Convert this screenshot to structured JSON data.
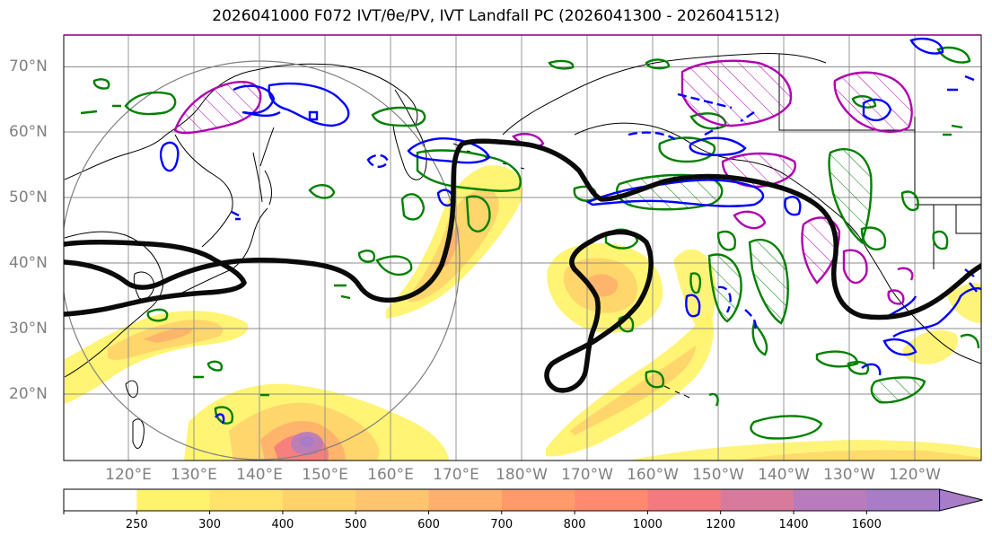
{
  "title": "2026041000 F072 IVT/θe/PV, IVT Landfall PC (2026041300 - 2026041512)",
  "map": {
    "lat_labels": [
      "70°N",
      "60°N",
      "50°N",
      "40°N",
      "30°N",
      "20°N"
    ],
    "lon_labels": [
      "120°E",
      "130°E",
      "140°E",
      "150°E",
      "160°E",
      "170°E",
      "180°W",
      "170°W",
      "160°W",
      "150°W",
      "140°W",
      "130°W",
      "120°W"
    ],
    "colors": {
      "ivt_contour": "#0a0a0a",
      "theta_e": "#0000ff",
      "pv": "#b000b0",
      "landfall": "#008000",
      "coastline": "#000000",
      "grid": "#8c8c8c",
      "circle": "#808080"
    }
  },
  "colorbar": {
    "levels": [
      "250",
      "300",
      "400",
      "500",
      "600",
      "700",
      "800",
      "1000",
      "1200",
      "1400",
      "1600"
    ],
    "colors": [
      "#ffffff",
      "#fff36b",
      "#ffe36b",
      "#ffd36a",
      "#ffc46e",
      "#ffb06c",
      "#ff9a6a",
      "#ff8a70",
      "#f57a80",
      "#d87a9c",
      "#b87cbc",
      "#a87cc6"
    ]
  }
}
